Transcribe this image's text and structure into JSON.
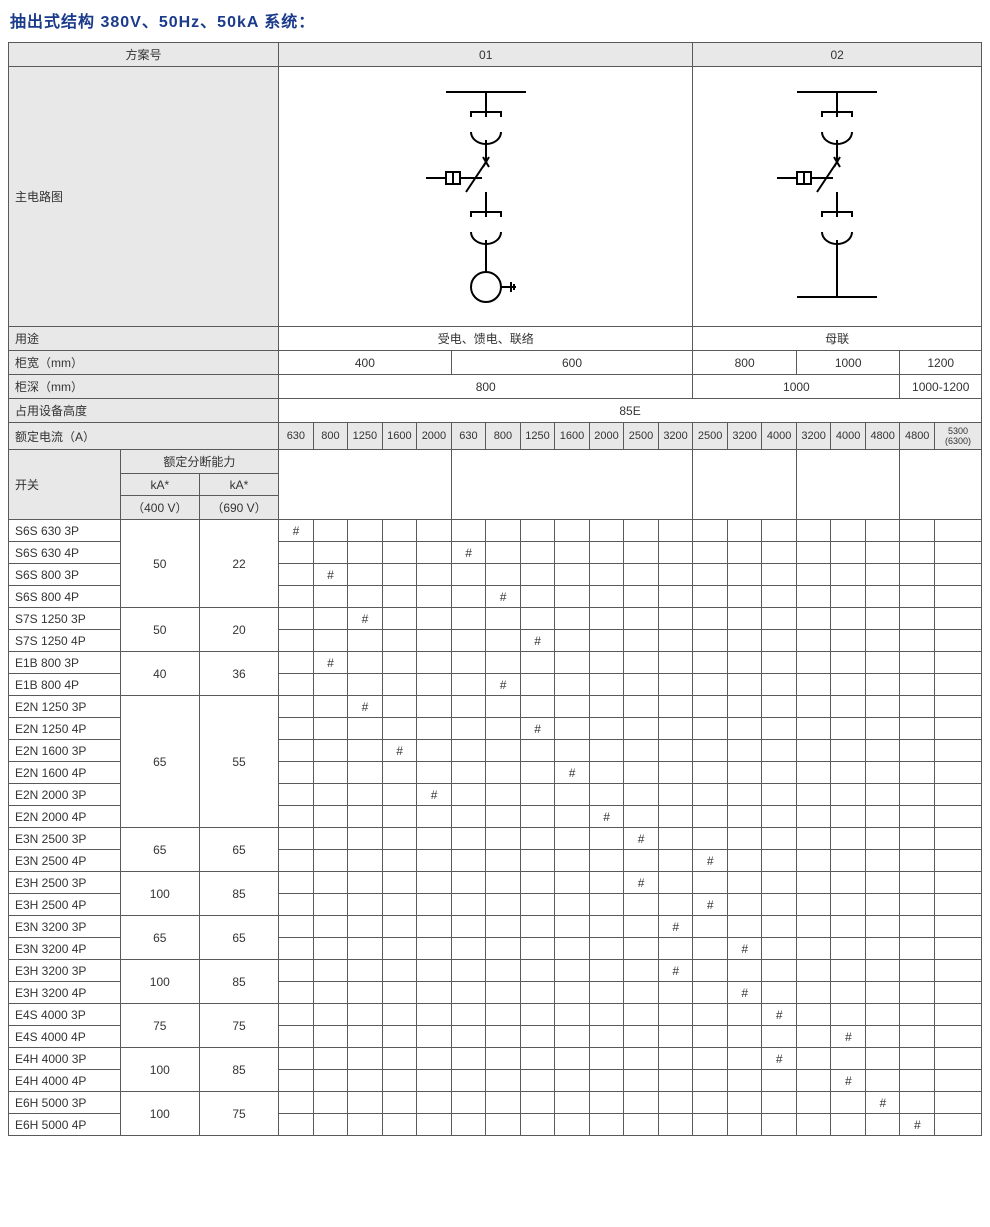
{
  "title": "抽出式结构 380V、50Hz、50kA 系统：",
  "schemes": {
    "label": "方案号",
    "col01": "01",
    "col02": "02"
  },
  "main_circuit_label": "主电路图",
  "usage": {
    "label": "用途",
    "u01": "受电、馈电、联络",
    "u02": "母联"
  },
  "width": {
    "label": "柜宽（mm）",
    "a": "400",
    "b": "600",
    "c": "800",
    "d": "1000",
    "e": "1200"
  },
  "depth": {
    "label": "柜深（mm）",
    "a": "800",
    "b": "1000",
    "c": "1000-1200"
  },
  "height": {
    "label": "占用设备高度",
    "val": "85E"
  },
  "rated_current": {
    "label": "额定电流（A）",
    "cols": [
      "630",
      "800",
      "1250",
      "1600",
      "2000",
      "630",
      "800",
      "1250",
      "1600",
      "2000",
      "2500",
      "3200",
      "2500",
      "3200",
      "4000",
      "3200",
      "4000",
      "4800",
      "4800",
      "5300 (6300)"
    ]
  },
  "switch_hdr": {
    "switch": "开关",
    "break_cap": "额定分断能力",
    "ka400": "kA*",
    "v400": "（400 V）",
    "ka690": "kA*",
    "v690": "（690 V）"
  },
  "mark": "#",
  "rows": [
    {
      "name": "S6S 630 3P",
      "ka4": "50",
      "ka6": "22",
      "span": 4,
      "marks": [
        0
      ]
    },
    {
      "name": "S6S 630 4P",
      "marks": [
        5
      ]
    },
    {
      "name": "S6S 800 3P",
      "marks": [
        1
      ]
    },
    {
      "name": "S6S 800 4P",
      "marks": [
        6
      ]
    },
    {
      "name": "S7S 1250 3P",
      "ka4": "50",
      "ka6": "20",
      "span": 2,
      "marks": [
        2
      ]
    },
    {
      "name": "S7S 1250 4P",
      "marks": [
        7
      ]
    },
    {
      "name": "E1B 800 3P",
      "ka4": "40",
      "ka6": "36",
      "span": 2,
      "marks": [
        1
      ]
    },
    {
      "name": "E1B 800 4P",
      "marks": [
        6
      ]
    },
    {
      "name": "E2N 1250 3P",
      "ka4": "65",
      "ka6": "55",
      "span": 6,
      "marks": [
        2
      ]
    },
    {
      "name": "E2N 1250 4P",
      "marks": [
        7
      ]
    },
    {
      "name": "E2N 1600 3P",
      "marks": [
        3
      ]
    },
    {
      "name": "E2N 1600 4P",
      "marks": [
        8
      ]
    },
    {
      "name": "E2N 2000 3P",
      "marks": [
        4
      ]
    },
    {
      "name": "E2N 2000 4P",
      "marks": [
        9
      ]
    },
    {
      "name": "E3N 2500 3P",
      "ka4": "65",
      "ka6": "65",
      "span": 2,
      "marks": [
        10
      ]
    },
    {
      "name": "E3N 2500 4P",
      "marks": [
        12
      ]
    },
    {
      "name": "E3H 2500 3P",
      "ka4": "100",
      "ka6": "85",
      "span": 2,
      "marks": [
        10
      ]
    },
    {
      "name": "E3H 2500 4P",
      "marks": [
        12
      ]
    },
    {
      "name": "E3N 3200 3P",
      "ka4": "65",
      "ka6": "65",
      "span": 2,
      "marks": [
        11
      ]
    },
    {
      "name": "E3N 3200 4P",
      "marks": [
        13
      ]
    },
    {
      "name": "E3H 3200 3P",
      "ka4": "100",
      "ka6": "85",
      "span": 2,
      "marks": [
        11
      ]
    },
    {
      "name": "E3H 3200 4P",
      "marks": [
        13
      ]
    },
    {
      "name": "E4S 4000 3P",
      "ka4": "75",
      "ka6": "75",
      "span": 2,
      "marks": [
        14
      ]
    },
    {
      "name": "E4S 4000 4P",
      "marks": [
        16
      ]
    },
    {
      "name": "E4H 4000 3P",
      "ka4": "100",
      "ka6": "85",
      "span": 2,
      "marks": [
        14
      ]
    },
    {
      "name": "E4H 4000 4P",
      "marks": [
        16
      ]
    },
    {
      "name": "E6H 5000 3P",
      "ka4": "100",
      "ka6": "75",
      "span": 2,
      "marks": [
        17
      ]
    },
    {
      "name": "E6H 5000 4P",
      "marks": [
        18
      ]
    }
  ],
  "colors": {
    "border": "#5a5a5a",
    "header_bg": "#e8e8e8",
    "title": "#1a3a8a",
    "stroke": "#000000"
  }
}
